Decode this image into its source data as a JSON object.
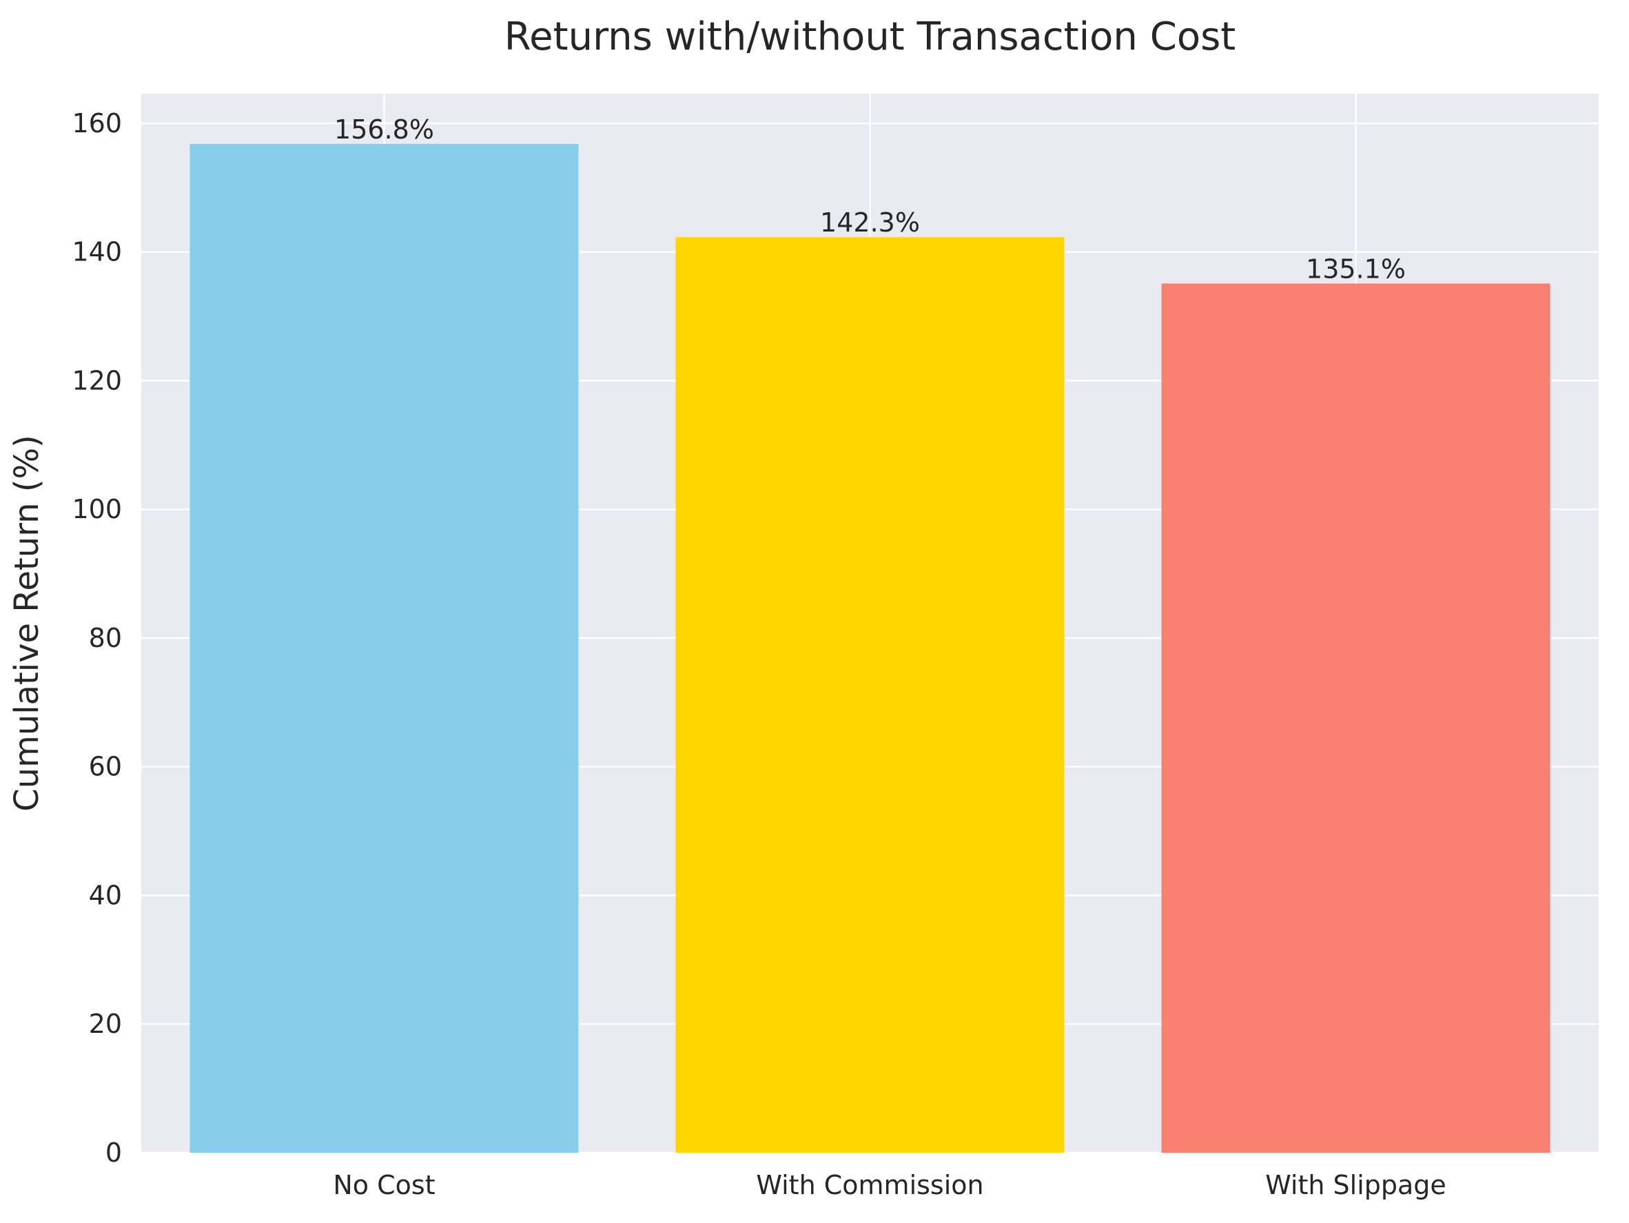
{
  "chart_data": {
    "type": "bar",
    "title": "Returns with/without Transaction Cost",
    "xlabel": "",
    "ylabel": "Cumulative Return (%)",
    "categories": [
      "No Cost",
      "With Commission",
      "With Slippage"
    ],
    "values": [
      156.8,
      142.3,
      135.1
    ],
    "data_labels": [
      "156.8%",
      "142.3%",
      "135.1%"
    ],
    "colors": [
      "#87CEEB",
      "#FFD700",
      "#FA8072"
    ],
    "ylim": [
      0,
      164.6
    ],
    "yticks": [
      0,
      20,
      40,
      60,
      80,
      100,
      120,
      140,
      160
    ],
    "grid": true,
    "background": "#EAEAF2",
    "gridline_color": "#FFFFFF"
  }
}
